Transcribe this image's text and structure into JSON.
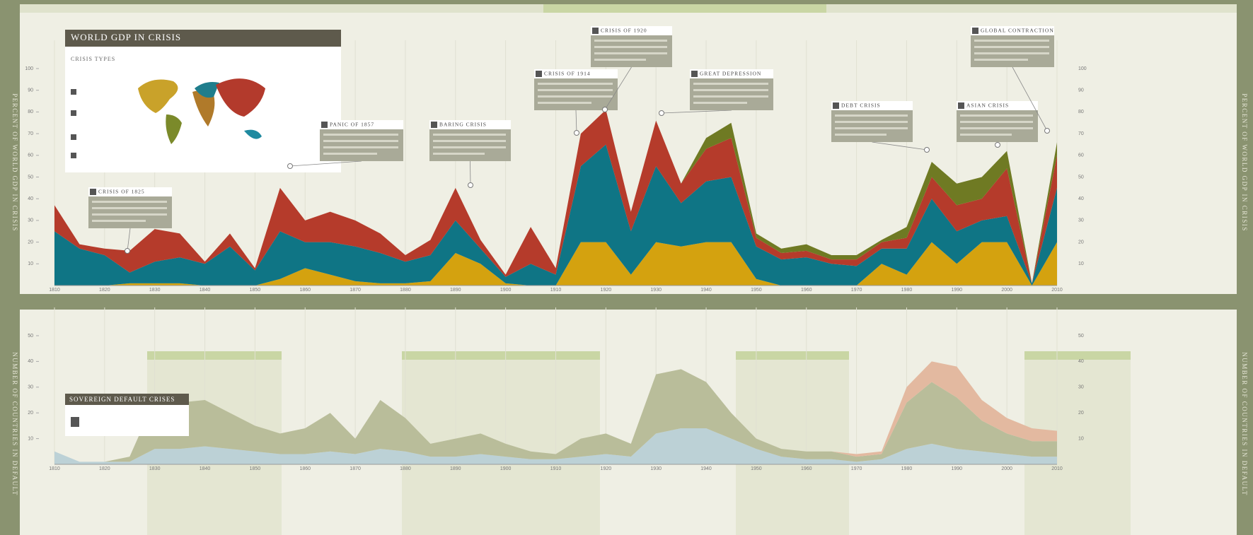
{
  "chart_data": [
    {
      "type": "stacked-area",
      "title": "WORLD GDP IN CRISIS",
      "legend_title": "CRISIS TYPES",
      "ylabel": "PERCENT OF WORLD GDP IN CRISIS",
      "x": [
        1810,
        1815,
        1820,
        1825,
        1830,
        1835,
        1840,
        1845,
        1850,
        1855,
        1860,
        1865,
        1870,
        1875,
        1880,
        1885,
        1890,
        1895,
        1900,
        1905,
        1910,
        1915,
        1920,
        1925,
        1930,
        1935,
        1940,
        1945,
        1950,
        1955,
        1960,
        1965,
        1970,
        1975,
        1980,
        1985,
        1990,
        1995,
        2000,
        2005,
        2010
      ],
      "xlim": [
        1810,
        2010
      ],
      "xticks": [
        1810,
        1820,
        1830,
        1840,
        1850,
        1860,
        1870,
        1880,
        1890,
        1900,
        1910,
        1920,
        1930,
        1940,
        1950,
        1960,
        1970,
        1980,
        1990,
        2000,
        2010
      ],
      "ylim": [
        0,
        100
      ],
      "yticks": [
        10,
        20,
        30,
        40,
        50,
        60,
        70,
        80,
        90,
        100
      ],
      "grid": true,
      "series": [
        {
          "color": "#d4a20f",
          "values": [
            0,
            0,
            0,
            1,
            1,
            1,
            0,
            0,
            0,
            3,
            8,
            5,
            2,
            1,
            1,
            2,
            15,
            10,
            1,
            0,
            0,
            20,
            20,
            5,
            20,
            18,
            20,
            20,
            3,
            0,
            0,
            0,
            0,
            10,
            5,
            20,
            10,
            20,
            20,
            0,
            20
          ]
        },
        {
          "color": "#0f7585",
          "values": [
            25,
            17,
            14,
            5,
            10,
            12,
            10,
            18,
            7,
            22,
            12,
            15,
            16,
            14,
            10,
            12,
            15,
            7,
            3,
            10,
            5,
            35,
            45,
            20,
            35,
            20,
            28,
            30,
            15,
            12,
            13,
            10,
            9,
            7,
            12,
            20,
            15,
            10,
            12,
            1,
            25
          ]
        },
        {
          "color": "#b53b2b",
          "values": [
            12,
            2,
            3,
            10,
            15,
            11,
            1,
            6,
            1,
            20,
            10,
            14,
            12,
            9,
            3,
            7,
            15,
            4,
            1,
            17,
            3,
            15,
            16,
            9,
            21,
            9,
            15,
            18,
            4,
            3,
            3,
            2,
            3,
            3,
            5,
            10,
            12,
            10,
            22,
            0,
            15
          ]
        },
        {
          "color": "#6f7a23",
          "values": [
            0,
            0,
            0,
            0,
            0,
            0,
            0,
            0,
            0,
            0,
            0,
            0,
            0,
            0,
            0,
            0,
            0,
            0,
            0,
            0,
            0,
            0,
            0,
            0,
            0,
            0,
            5,
            7,
            2,
            2,
            3,
            2,
            2,
            1,
            5,
            7,
            10,
            10,
            8,
            0,
            6
          ]
        }
      ],
      "annotations": [
        "CRISIS OF 1825",
        "PANIC OF 1857",
        "BARING CRISIS",
        "CRISIS OF 1914",
        "CRISIS OF 1920",
        "GREAT DEPRESSION",
        "DEBT CRISIS",
        "ASIAN CRISIS",
        "GLOBAL CONTRACTION"
      ]
    },
    {
      "type": "stacked-area",
      "title": "SOVEREIGN DEFAULT CRISES",
      "ylabel": "NUMBER OF COUNTRIES IN DEFAULT",
      "x": [
        1810,
        1815,
        1820,
        1825,
        1830,
        1835,
        1840,
        1845,
        1850,
        1855,
        1860,
        1865,
        1870,
        1875,
        1880,
        1885,
        1890,
        1895,
        1900,
        1905,
        1910,
        1915,
        1920,
        1925,
        1930,
        1935,
        1940,
        1945,
        1950,
        1955,
        1960,
        1965,
        1970,
        1975,
        1980,
        1985,
        1990,
        1995,
        2000,
        2005,
        2010
      ],
      "xlim": [
        1810,
        2010
      ],
      "xticks": [
        1810,
        1820,
        1830,
        1840,
        1850,
        1860,
        1870,
        1880,
        1890,
        1900,
        1910,
        1920,
        1930,
        1940,
        1950,
        1960,
        1970,
        1980,
        1990,
        2000,
        2010
      ],
      "ylim": [
        0,
        50
      ],
      "yticks": [
        10,
        20,
        30,
        40,
        50
      ],
      "grid": true,
      "series": [
        {
          "color": "#bcd1d6",
          "values": [
            5,
            1,
            1,
            1,
            6,
            6,
            7,
            6,
            5,
            4,
            4,
            5,
            4,
            6,
            5,
            3,
            3,
            4,
            3,
            2,
            2,
            3,
            4,
            3,
            12,
            14,
            14,
            10,
            6,
            3,
            2,
            2,
            1,
            2,
            6,
            8,
            6,
            5,
            4,
            3,
            3
          ]
        },
        {
          "color": "#b9bd9a",
          "values": [
            0,
            0,
            0,
            2,
            19,
            18,
            18,
            14,
            10,
            8,
            10,
            15,
            6,
            19,
            13,
            5,
            7,
            8,
            5,
            3,
            2,
            7,
            8,
            5,
            23,
            23,
            18,
            10,
            4,
            3,
            3,
            3,
            2,
            2,
            18,
            24,
            20,
            12,
            8,
            6,
            6
          ]
        },
        {
          "color": "#e3b9a0",
          "values": [
            0,
            0,
            0,
            0,
            0,
            0,
            0,
            0,
            0,
            0,
            0,
            0,
            0,
            0,
            0,
            0,
            0,
            0,
            0,
            0,
            0,
            0,
            0,
            0,
            0,
            0,
            0,
            0,
            0,
            0,
            0,
            0,
            1,
            1,
            6,
            8,
            12,
            8,
            6,
            5,
            4
          ]
        }
      ]
    }
  ]
}
